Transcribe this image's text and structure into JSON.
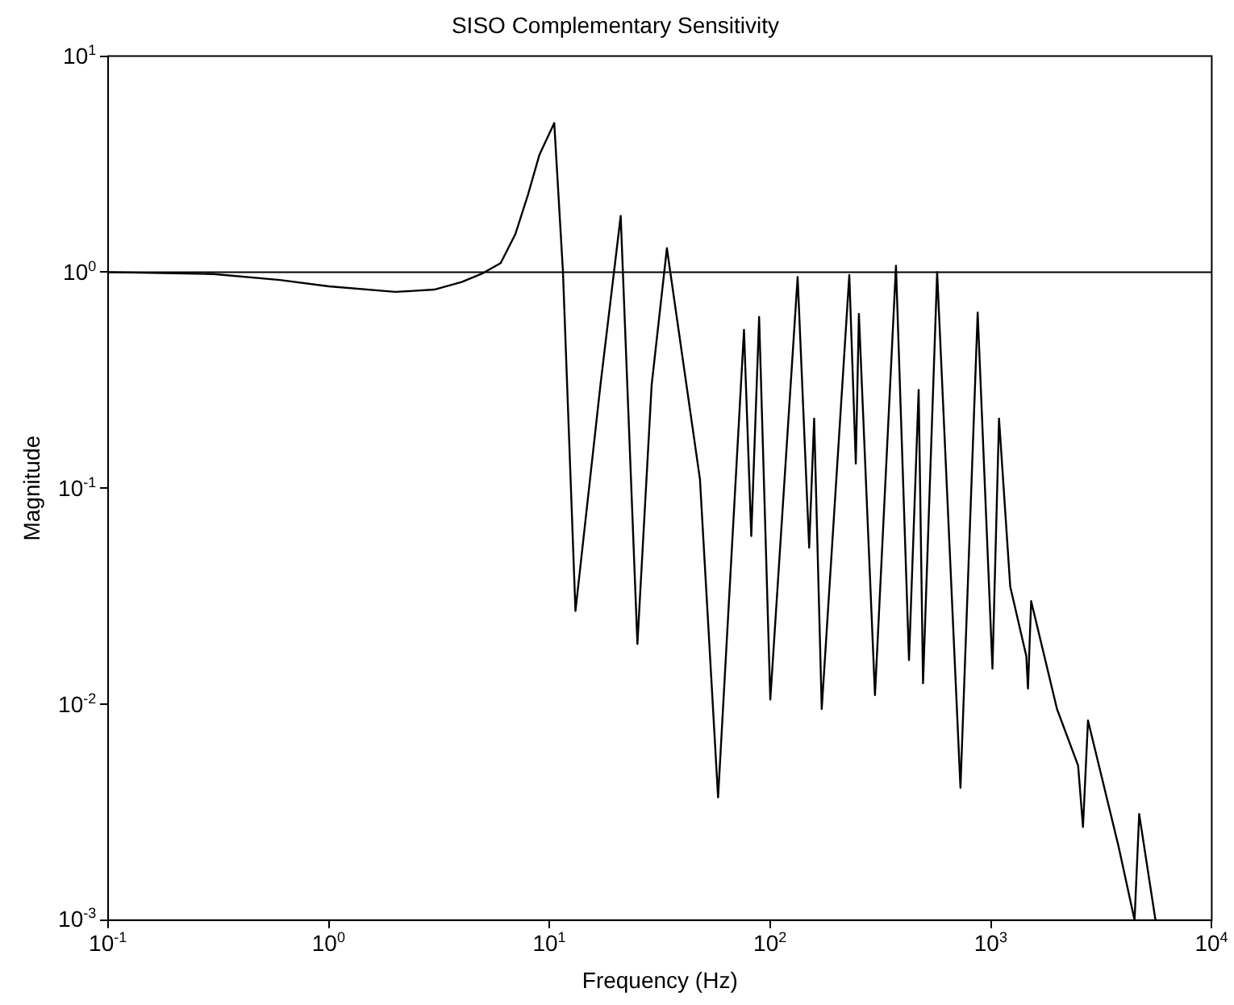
{
  "chart_data": {
    "type": "line",
    "title": "SISO Complementary Sensitivity",
    "xlabel": "Frequency (Hz)",
    "ylabel": "Magnitude",
    "log": "xy",
    "grid": false,
    "legend": false,
    "marker": "none",
    "line_style": "solid",
    "x": [
      0.1,
      0.3,
      0.6,
      1,
      2,
      3,
      4,
      5,
      6,
      7,
      8,
      9,
      10.5,
      11.5,
      13.1,
      17,
      21,
      25,
      29,
      34,
      48,
      58,
      76,
      82,
      89,
      100,
      133,
      150,
      158,
      171,
      228,
      244,
      252,
      298,
      371,
      425,
      470,
      492,
      570,
      727,
      870,
      1015,
      1087,
      1222,
      1445,
      1470,
      1520,
      1990,
      2480,
      2610,
      2750,
      3780,
      4470,
      4690,
      5560
    ],
    "series": [
      {
        "color": "#000000",
        "values": [
          1.0,
          0.98,
          0.92,
          0.86,
          0.81,
          0.83,
          0.9,
          0.99,
          1.1,
          1.5,
          2.3,
          3.5,
          4.9,
          1.0,
          0.027,
          0.3,
          1.82,
          0.019,
          0.3,
          1.29,
          0.11,
          0.0037,
          0.54,
          0.06,
          0.62,
          0.0105,
          0.95,
          0.053,
          0.21,
          0.0095,
          0.97,
          0.13,
          0.64,
          0.011,
          1.07,
          0.016,
          0.285,
          0.0125,
          1.0,
          0.0041,
          0.65,
          0.0146,
          0.21,
          0.035,
          0.0167,
          0.0118,
          0.03,
          0.0095,
          0.0052,
          0.0027,
          0.0084,
          0.0022,
          0.001,
          0.0031,
          0.001
        ]
      }
    ],
    "xlim": [
      0.1,
      10000
    ],
    "ylim": [
      0.001,
      10
    ],
    "xticks": [
      {
        "value": 0.1,
        "label": "10$^{-1}$"
      },
      {
        "value": 1,
        "label": "10$^{0}$"
      },
      {
        "value": 10,
        "label": "10$^{1}$"
      },
      {
        "value": 100,
        "label": "10$^{2}$"
      },
      {
        "value": 1000,
        "label": "10$^{3}$"
      },
      {
        "value": 10000,
        "label": "10$^{4}$"
      }
    ],
    "yticks": [
      {
        "value": 0.001,
        "label": "10$^{-3}$"
      },
      {
        "value": 0.01,
        "label": "10$^{-2}$"
      },
      {
        "value": 0.1,
        "label": "10$^{-1}$"
      },
      {
        "value": 1,
        "label": "10$^{0}$"
      },
      {
        "value": 10,
        "label": "10$^{1}$"
      }
    ],
    "ref_lines": [
      {
        "axis": "y",
        "value": 1,
        "color": "#000000"
      }
    ]
  }
}
